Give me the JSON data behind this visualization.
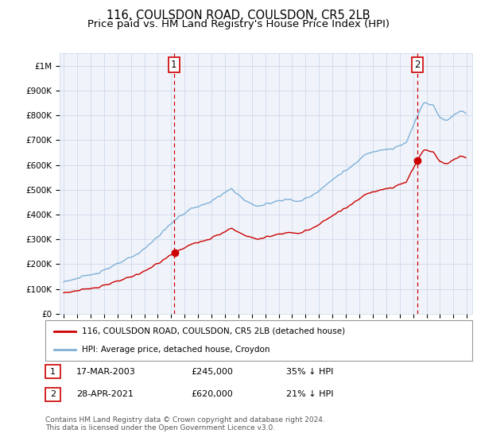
{
  "title": "116, COULSDON ROAD, COULSDON, CR5 2LB",
  "subtitle": "Price paid vs. HM Land Registry's House Price Index (HPI)",
  "title_fontsize": 10.5,
  "subtitle_fontsize": 9.5,
  "background_color": "#ffffff",
  "grid_color": "#cccccc",
  "hpi_color": "#7fb0d8",
  "price_color": "#cc0000",
  "ylim": [
    0,
    1050000
  ],
  "yticks": [
    0,
    100000,
    200000,
    300000,
    400000,
    500000,
    600000,
    700000,
    800000,
    900000,
    1000000
  ],
  "ytick_labels": [
    "£0",
    "£100K",
    "£200K",
    "£300K",
    "£400K",
    "£500K",
    "£600K",
    "£700K",
    "£800K",
    "£900K",
    "£1M"
  ],
  "sale1_year": 2003.21,
  "sale1_price": 245000,
  "sale1_label": "1",
  "sale2_year": 2021.33,
  "sale2_price": 620000,
  "sale2_label": "2",
  "legend_line1": "116, COULSDON ROAD, COULSDON, CR5 2LB (detached house)",
  "legend_line2": "HPI: Average price, detached house, Croydon",
  "table_row1": [
    "1",
    "17-MAR-2003",
    "£245,000",
    "35% ↓ HPI"
  ],
  "table_row2": [
    "2",
    "28-APR-2021",
    "£620,000",
    "21% ↓ HPI"
  ],
  "footer1": "Contains HM Land Registry data © Crown copyright and database right 2024.",
  "footer2": "This data is licensed under the Open Government Licence v3.0."
}
